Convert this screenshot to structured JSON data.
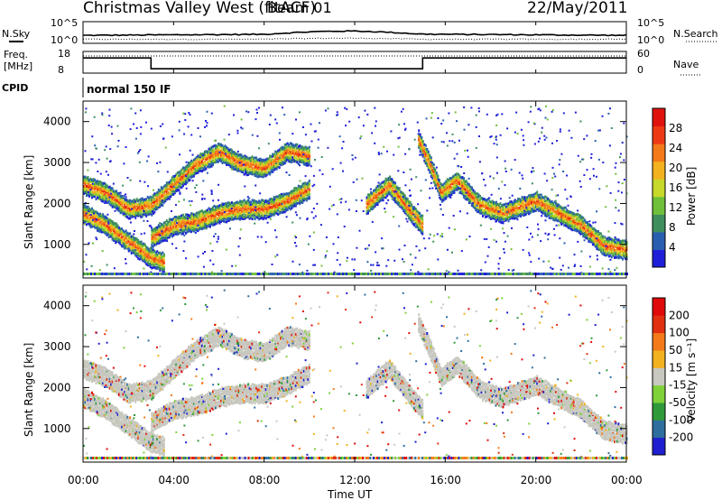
{
  "header": {
    "title": "Christmas Valley West (fitACF)",
    "beam": "Beam 01",
    "date": "22/May/2011"
  },
  "nsky_panel": {
    "label": "N.Sky",
    "right_label": "N.Search",
    "ticks_left": [
      "10^5",
      "10^0"
    ],
    "ticks_right": [
      "10^5",
      "10^0"
    ]
  },
  "freq_panel": {
    "label_line1": "Freq.",
    "label_line2": "[MHz]",
    "ticks_left": [
      "18",
      "8"
    ],
    "right_label": "Nave",
    "ticks_right": [
      "60",
      "0"
    ]
  },
  "cpid": {
    "label": "CPID",
    "value": "normal 150 IF"
  },
  "x_axis": {
    "label": "Time UT",
    "ticks": [
      "00:00",
      "04:00",
      "08:00",
      "12:00",
      "16:00",
      "20:00",
      "00:00"
    ]
  },
  "power_panel": {
    "ylabel": "Slant Range [km]",
    "yticks": [
      "1000",
      "2000",
      "3000",
      "4000"
    ],
    "colorbar_label": "Power [dB]",
    "colorbar_ticks": [
      "28",
      "24",
      "20",
      "16",
      "12",
      "8",
      "4"
    ],
    "colors": [
      "#1f1fd9",
      "#2a5fb0",
      "#3e8e5e",
      "#6fbf3a",
      "#c6d82a",
      "#f2b21f",
      "#f27a1a",
      "#ee3a14",
      "#e0120e"
    ]
  },
  "velocity_panel": {
    "ylabel": "Slant Range [km]",
    "yticks": [
      "1000",
      "2000",
      "3000",
      "4000"
    ],
    "colorbar_label": "Velocity [m s⁻¹]",
    "colorbar_ticks": [
      "200",
      "100",
      "50",
      "15",
      "-15",
      "-50",
      "-100",
      "-200"
    ],
    "colors": [
      "#1f1fd0",
      "#2d6e9e",
      "#2f9a3a",
      "#7fd13a",
      "#c8c8c0",
      "#f2b21f",
      "#f27a1a",
      "#e03010",
      "#e00a0a"
    ]
  },
  "chart_data": {
    "type": "heatmap",
    "x_range_hours": [
      0,
      24
    ],
    "y_range_km": [
      180,
      4500
    ],
    "frequency_mhz": [
      {
        "start": "00:00",
        "end": "03:00",
        "value": 15
      },
      {
        "start": "03:00",
        "end": "15:00",
        "value": 10
      },
      {
        "start": "15:00",
        "end": "24:00",
        "value": 15
      }
    ],
    "power_echo_bands": [
      {
        "name": "band1",
        "points_hr_km": [
          [
            0,
            2500
          ],
          [
            1,
            2300
          ],
          [
            2,
            1900
          ],
          [
            3,
            2000
          ],
          [
            4,
            2500
          ],
          [
            5,
            3000
          ],
          [
            6,
            3300
          ],
          [
            7,
            3000
          ],
          [
            8,
            2900
          ],
          [
            9,
            3300
          ],
          [
            10,
            3200
          ]
        ]
      },
      {
        "name": "band2",
        "points_hr_km": [
          [
            3,
            1200
          ],
          [
            4,
            1500
          ],
          [
            5,
            1600
          ],
          [
            6,
            1800
          ],
          [
            7,
            1900
          ],
          [
            8,
            1900
          ],
          [
            9,
            2100
          ],
          [
            10,
            2400
          ]
        ]
      },
      {
        "name": "band3",
        "points_hr_km": [
          [
            0,
            1800
          ],
          [
            1,
            1500
          ],
          [
            2,
            1100
          ],
          [
            3,
            700
          ],
          [
            3.6,
            600
          ]
        ]
      },
      {
        "name": "band4",
        "points_hr_km": [
          [
            14.8,
            3600
          ],
          [
            15.3,
            3000
          ],
          [
            15.8,
            2300
          ],
          [
            16.5,
            2600
          ],
          [
            17.5,
            2000
          ],
          [
            18.5,
            1800
          ],
          [
            20,
            2100
          ],
          [
            21,
            1800
          ],
          [
            22,
            1500
          ],
          [
            23,
            1000
          ],
          [
            24,
            900
          ]
        ]
      },
      {
        "name": "band5",
        "points_hr_km": [
          [
            12.5,
            2000
          ],
          [
            13.5,
            2500
          ],
          [
            14.5,
            1800
          ],
          [
            15,
            1500
          ]
        ]
      }
    ]
  }
}
